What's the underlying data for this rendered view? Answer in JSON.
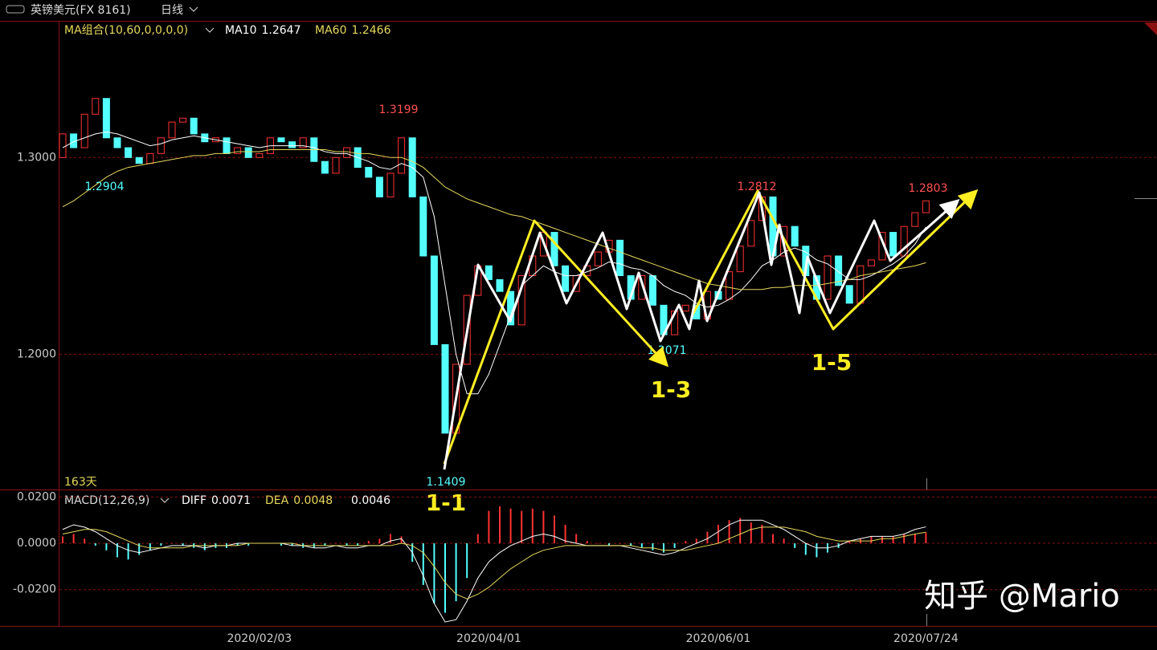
{
  "chart_data": [
    {
      "type": "candlestick",
      "title": "英镑美元(FX 8161)",
      "period": "日线",
      "indicator": "MA组合(10,60,0,0,0,0)",
      "categories": [
        null,
        null,
        null,
        null,
        null,
        null,
        null,
        null,
        null,
        null,
        null,
        null,
        null,
        null,
        null,
        null,
        null,
        null,
        "2020/02/03",
        null,
        null,
        null,
        null,
        null,
        null,
        null,
        null,
        null,
        null,
        null,
        null,
        null,
        null,
        null,
        null,
        null,
        null,
        null,
        null,
        "2020/04/01",
        null,
        null,
        null,
        null,
        null,
        null,
        null,
        null,
        null,
        null,
        null,
        null,
        null,
        null,
        null,
        null,
        null,
        null,
        null,
        null,
        "2020/06/01",
        null,
        null,
        null,
        null,
        null,
        null,
        null,
        null,
        null,
        null,
        null,
        null,
        null,
        null,
        null,
        null,
        null,
        null,
        "2020/07/24"
      ],
      "open": [
        1.3,
        1.312,
        1.305,
        1.322,
        1.33,
        1.31,
        1.305,
        1.3,
        1.297,
        1.302,
        1.31,
        1.318,
        1.32,
        1.312,
        1.308,
        1.31,
        1.302,
        1.305,
        1.3,
        1.302,
        1.31,
        1.308,
        1.305,
        1.31,
        1.298,
        1.292,
        1.3,
        1.305,
        1.295,
        1.29,
        1.28,
        1.292,
        1.31,
        1.28,
        1.25,
        1.205,
        1.16,
        1.195,
        1.23,
        1.245,
        1.238,
        1.232,
        1.215,
        1.24,
        1.25,
        1.262,
        1.245,
        1.232,
        1.24,
        1.245,
        1.252,
        1.258,
        1.24,
        1.228,
        1.24,
        1.225,
        1.21,
        1.222,
        1.225,
        1.218,
        1.232,
        1.228,
        1.242,
        1.255,
        1.268,
        1.28,
        1.25,
        1.265,
        1.255,
        1.24,
        1.228,
        1.25,
        1.235,
        1.226,
        1.245,
        1.248,
        1.262,
        1.25,
        1.265,
        1.272
      ],
      "close": [
        1.312,
        1.305,
        1.322,
        1.33,
        1.31,
        1.305,
        1.3,
        1.297,
        1.302,
        1.31,
        1.318,
        1.32,
        1.312,
        1.308,
        1.31,
        1.302,
        1.305,
        1.3,
        1.302,
        1.31,
        1.308,
        1.305,
        1.31,
        1.298,
        1.292,
        1.3,
        1.305,
        1.295,
        1.29,
        1.28,
        1.292,
        1.31,
        1.28,
        1.25,
        1.205,
        1.16,
        1.195,
        1.23,
        1.245,
        1.238,
        1.232,
        1.215,
        1.24,
        1.25,
        1.262,
        1.245,
        1.232,
        1.24,
        1.245,
        1.252,
        1.258,
        1.24,
        1.228,
        1.24,
        1.225,
        1.21,
        1.222,
        1.225,
        1.218,
        1.232,
        1.228,
        1.242,
        1.255,
        1.268,
        1.28,
        1.25,
        1.265,
        1.255,
        1.24,
        1.228,
        1.25,
        1.235,
        1.226,
        1.245,
        1.248,
        1.262,
        1.25,
        1.265,
        1.272,
        1.278
      ],
      "up_color": "#ff3232",
      "down_color": "#54ffff",
      "series": [
        {
          "name": "MA10",
          "color": "#ffffff",
          "values": [
            1.305,
            1.308,
            1.31,
            1.312,
            1.313,
            1.312,
            1.31,
            1.308,
            1.306,
            1.307,
            1.309,
            1.31,
            1.311,
            1.31,
            1.309,
            1.308,
            1.307,
            1.306,
            1.305,
            1.306,
            1.306,
            1.306,
            1.306,
            1.305,
            1.303,
            1.302,
            1.302,
            1.3,
            1.298,
            1.295,
            1.294,
            1.297,
            1.295,
            1.29,
            1.27,
            1.235,
            1.2,
            1.18,
            1.18,
            1.19,
            1.205,
            1.22,
            1.235,
            1.24,
            1.245,
            1.242,
            1.24,
            1.24,
            1.242,
            1.244,
            1.247,
            1.246,
            1.244,
            1.243,
            1.24,
            1.235,
            1.232,
            1.23,
            1.226,
            1.224,
            1.225,
            1.228,
            1.232,
            1.238,
            1.245,
            1.248,
            1.252,
            1.254,
            1.252,
            1.248,
            1.246,
            1.242,
            1.238,
            1.238,
            1.24,
            1.243,
            1.246,
            1.25,
            1.256,
            1.2647
          ]
        },
        {
          "name": "MA60",
          "color": "#e6d85a",
          "values": [
            1.275,
            1.278,
            1.282,
            1.286,
            1.29,
            1.293,
            1.295,
            1.296,
            1.297,
            1.298,
            1.299,
            1.3,
            1.301,
            1.301,
            1.302,
            1.302,
            1.303,
            1.303,
            1.303,
            1.304,
            1.304,
            1.304,
            1.304,
            1.304,
            1.304,
            1.303,
            1.303,
            1.302,
            1.302,
            1.301,
            1.3,
            1.3,
            1.298,
            1.295,
            1.29,
            1.285,
            1.282,
            1.279,
            1.277,
            1.275,
            1.273,
            1.271,
            1.27,
            1.268,
            1.266,
            1.264,
            1.262,
            1.26,
            1.258,
            1.256,
            1.254,
            1.252,
            1.25,
            1.248,
            1.246,
            1.244,
            1.242,
            1.24,
            1.238,
            1.236,
            1.235,
            1.234,
            1.233,
            1.233,
            1.233,
            1.234,
            1.234,
            1.235,
            1.235,
            1.235,
            1.236,
            1.237,
            1.238,
            1.24,
            1.241,
            1.242,
            1.243,
            1.244,
            1.245,
            1.2466
          ]
        }
      ],
      "ylim": [
        1.1314,
        1.369
      ],
      "yticks": [
        {
          "value": 1.2,
          "label": "1.2000"
        },
        {
          "value": 1.3,
          "label": "1.3000"
        }
      ],
      "grid": true,
      "extreme_labels": [
        1.2904,
        1.3199,
        1.1409,
        1.2071,
        1.2812,
        1.2803
      ],
      "wave_labels": [
        "1-1",
        "1-3",
        "1-5"
      ],
      "day_count": "163天",
      "watermark": "知乎 @Mario"
    },
    {
      "type": "macd",
      "title": "MACD(12,26,9)",
      "histogram": {
        "values": [
          0.003,
          0.004,
          0.002,
          -0.001,
          -0.003,
          -0.006,
          -0.007,
          -0.005,
          -0.003,
          -0.001,
          0,
          -0.001,
          -0.002,
          -0.003,
          -0.002,
          -0.002,
          -0.001,
          -0.001,
          0,
          0,
          -0.001,
          -0.001,
          -0.002,
          -0.002,
          -0.001,
          0,
          -0.001,
          -0.001,
          0.001,
          0.002,
          0.004,
          0.003,
          -0.008,
          -0.018,
          -0.026,
          -0.03,
          -0.025,
          -0.015,
          0.004,
          0.014,
          0.016,
          0.015,
          0.014,
          0.015,
          0.014,
          0.012,
          0.008,
          0.004,
          0.001,
          0,
          -0.001,
          0,
          -0.001,
          -0.002,
          -0.003,
          -0.004,
          -0.002,
          0.001,
          0.002,
          0.005,
          0.008,
          0.01,
          0.011,
          0.009,
          0.008,
          0.004,
          0.002,
          -0.002,
          -0.005,
          -0.006,
          -0.004,
          -0.002,
          0.001,
          0.002,
          0.003,
          0.003,
          0.003,
          0.004,
          0.004,
          0.0046
        ],
        "up_color": "#ff3232",
        "down_color": "#54ffff"
      },
      "series": [
        {
          "name": "DIFF",
          "color": "#ffffff",
          "values": [
            0.006,
            0.008,
            0.007,
            0.005,
            0.002,
            -0.001,
            -0.003,
            -0.004,
            -0.003,
            -0.002,
            -0.001,
            -0.001,
            -0.001,
            -0.002,
            -0.001,
            -0.001,
            0,
            0,
            0,
            0,
            0,
            -0.001,
            -0.001,
            -0.002,
            -0.002,
            -0.001,
            -0.002,
            -0.002,
            -0.001,
            -0.001,
            0.001,
            0.002,
            -0.004,
            -0.014,
            -0.026,
            -0.034,
            -0.033,
            -0.025,
            -0.015,
            -0.008,
            -0.004,
            -0.001,
            0.001,
            0.003,
            0.004,
            0.003,
            0.001,
            0,
            -0.001,
            -0.001,
            -0.001,
            -0.001,
            -0.002,
            -0.003,
            -0.004,
            -0.005,
            -0.004,
            -0.002,
            0,
            0.002,
            0.005,
            0.008,
            0.01,
            0.01,
            0.01,
            0.008,
            0.006,
            0.003,
            0,
            -0.002,
            -0.002,
            -0.001,
            0.001,
            0.002,
            0.003,
            0.003,
            0.003,
            0.004,
            0.006,
            0.0071
          ]
        },
        {
          "name": "DEA",
          "color": "#e6d85a",
          "values": [
            0.004,
            0.005,
            0.006,
            0.006,
            0.005,
            0.003,
            0.001,
            -0.001,
            -0.002,
            -0.002,
            -0.002,
            -0.002,
            -0.001,
            -0.001,
            -0.001,
            -0.001,
            -0.001,
            0,
            0,
            0,
            0,
            0,
            -0.001,
            -0.001,
            -0.001,
            -0.001,
            -0.001,
            -0.001,
            -0.001,
            -0.001,
            -0.001,
            0,
            -0.001,
            -0.004,
            -0.01,
            -0.017,
            -0.022,
            -0.024,
            -0.022,
            -0.019,
            -0.015,
            -0.011,
            -0.008,
            -0.005,
            -0.003,
            -0.002,
            -0.001,
            -0.001,
            -0.001,
            -0.001,
            -0.001,
            -0.001,
            -0.001,
            -0.002,
            -0.002,
            -0.003,
            -0.003,
            -0.003,
            -0.002,
            -0.001,
            0,
            0.002,
            0.004,
            0.006,
            0.007,
            0.007,
            0.007,
            0.006,
            0.005,
            0.003,
            0.002,
            0.001,
            0.001,
            0.001,
            0.001,
            0.002,
            0.002,
            0.003,
            0.004,
            0.0048
          ]
        }
      ],
      "ylim": [
        -0.0357,
        0.0229
      ],
      "yticks": [
        {
          "value": -0.02,
          "label": "-0.0200"
        },
        {
          "value": 0,
          "label": "0.0000"
        },
        {
          "value": 0.02,
          "label": "0.0200"
        }
      ],
      "grid": true
    }
  ]
}
